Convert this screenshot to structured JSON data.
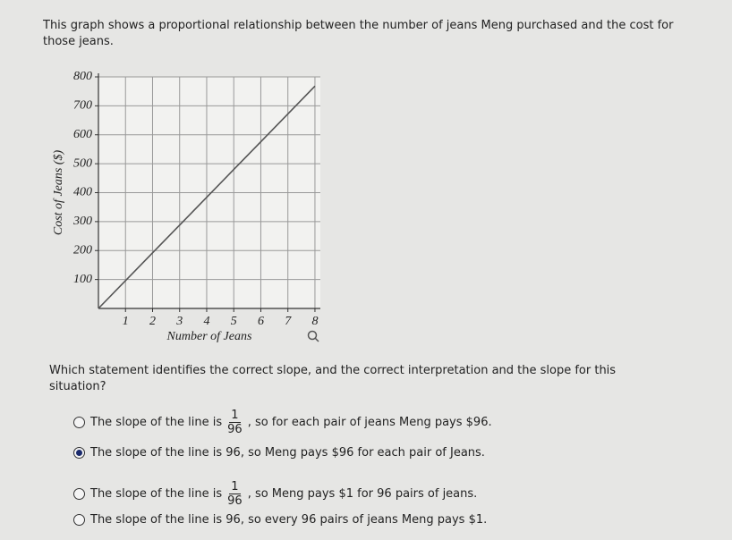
{
  "intro": "This graph shows a proportional relationship between the number of jeans Meng purchased and the cost for those jeans.",
  "chart_data": {
    "type": "line",
    "x_label": "Number of Jeans",
    "y_label": "Cost of Jeans ($)",
    "x": [
      0,
      1,
      2,
      3,
      4,
      5,
      6,
      7,
      8
    ],
    "series": [
      {
        "color": "#555555",
        "values": [
          0,
          96,
          192,
          288,
          384,
          480,
          576,
          672,
          768
        ]
      }
    ],
    "xlim": [
      0,
      8.2
    ],
    "ylim": [
      0,
      800
    ],
    "xticks": [
      1,
      2,
      3,
      4,
      5,
      6,
      7,
      8
    ],
    "yticks": [
      100,
      200,
      300,
      400,
      500,
      600,
      700,
      800
    ],
    "grid": true
  },
  "question": "Which statement identifies the correct slope, and the correct interpretation and the slope for this situation?",
  "options": [
    {
      "before": "The slope of the line is",
      "numerator": "1",
      "denominator": "96",
      "after": ", so for each pair of jeans Meng pays $96."
    },
    {
      "before": "The slope of the line is 96, so Meng pays $96 for each pair of Jeans."
    },
    {
      "before": "The slope of the line is",
      "numerator": "1",
      "denominator": "96",
      "after": ", so Meng pays $1 for 96 pairs of jeans."
    },
    {
      "before": "The slope of the line is 96, so every 96 pairs of jeans Meng pays $1."
    }
  ],
  "selected": 1
}
